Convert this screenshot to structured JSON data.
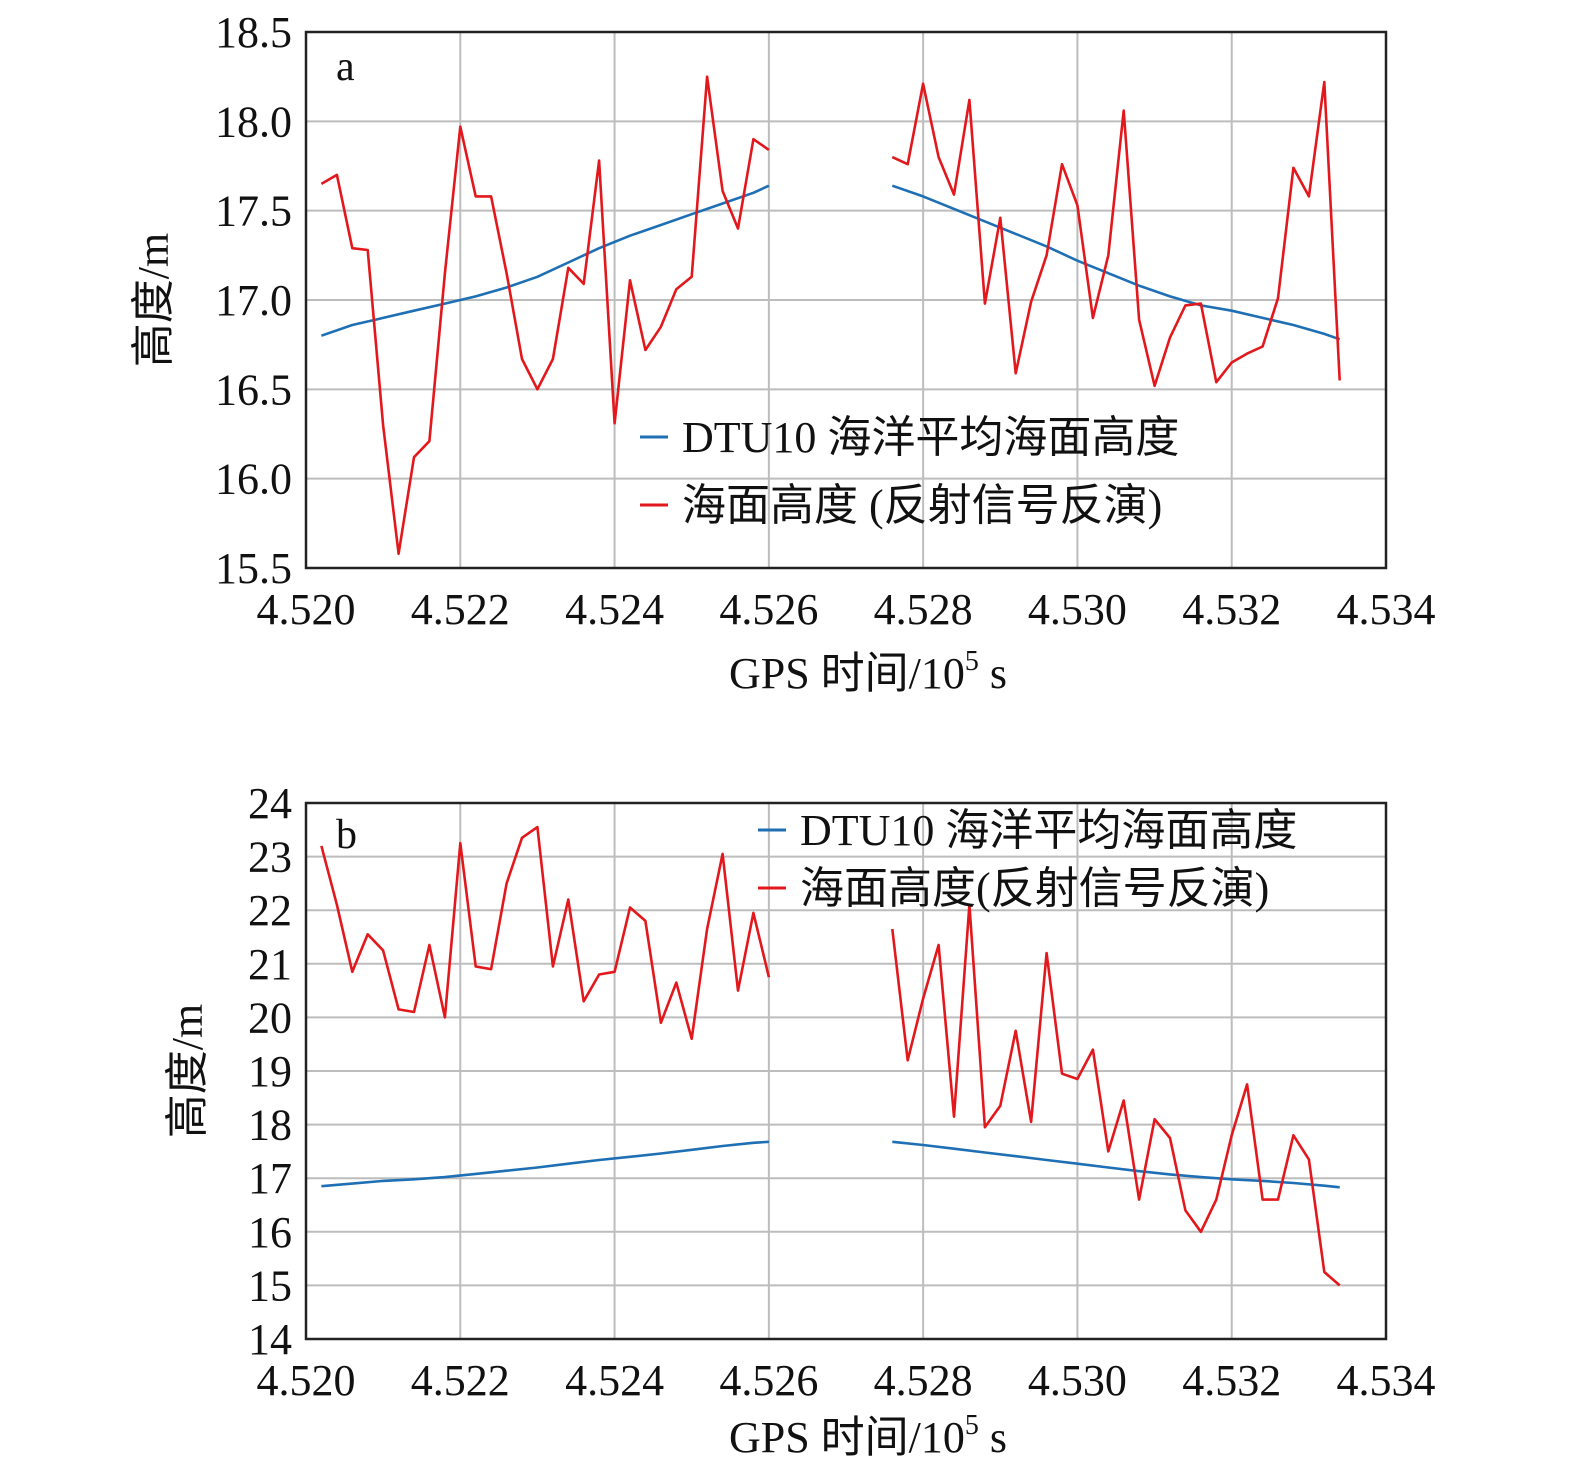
{
  "colors": {
    "dtu": "#1f6fb4",
    "ssh": "#e3181c",
    "grid": "#bdbdbd",
    "frame": "#222222"
  },
  "chart_data": [
    {
      "type": "line",
      "panel_label": "a",
      "xlabel_main": "GPS 时间/10",
      "xlabel_sup": "5",
      "xlabel_unit": " s",
      "ylabel": "高度/m",
      "xlim": [
        4.52,
        4.534
      ],
      "ylim": [
        15.5,
        18.5
      ],
      "xticks": [
        "4.520",
        "4.522",
        "4.524",
        "4.526",
        "4.528",
        "4.530",
        "4.532",
        "4.534"
      ],
      "yticks": [
        "15.5",
        "16.0",
        "16.5",
        "17.0",
        "17.5",
        "18.0",
        "18.5"
      ],
      "grid": true,
      "legend_position": "lower-right",
      "series": [
        {
          "name": "DTU10 海洋平均海面高度",
          "color_key": "dtu",
          "segments": [
            {
              "x": [
                4.5202,
                4.5206,
                4.521,
                4.5214,
                4.5218,
                4.5222,
                4.5226,
                4.523,
                4.5234,
                4.5238,
                4.5242,
                4.5246,
                4.525,
                4.5254,
                4.5258,
                4.526
              ],
              "y": [
                16.8,
                16.86,
                16.9,
                16.94,
                16.98,
                17.02,
                17.07,
                17.13,
                17.21,
                17.29,
                17.36,
                17.42,
                17.48,
                17.54,
                17.6,
                17.64
              ]
            },
            {
              "x": [
                4.5276,
                4.528,
                4.5284,
                4.5288,
                4.5292,
                4.5296,
                4.53,
                4.5304,
                4.5308,
                4.5312,
                4.5316,
                4.532,
                4.5324,
                4.5328,
                4.5332,
                4.5334
              ],
              "y": [
                17.64,
                17.58,
                17.51,
                17.44,
                17.37,
                17.3,
                17.22,
                17.15,
                17.08,
                17.02,
                16.97,
                16.94,
                16.9,
                16.86,
                16.81,
                16.78
              ]
            }
          ]
        },
        {
          "name": "海面高度 (反射信号反演)",
          "color_key": "ssh",
          "segments": [
            {
              "x": [
                4.5202,
                4.5204,
                4.5206,
                4.5208,
                4.521,
                4.5212,
                4.5214,
                4.5216,
                4.5218,
                4.522,
                4.5222,
                4.5224,
                4.5226,
                4.5228,
                4.523,
                4.5232,
                4.5234,
                4.5236,
                4.5238,
                4.524,
                4.5242,
                4.5244,
                4.5246,
                4.5248,
                4.525,
                4.5252,
                4.5254,
                4.5256,
                4.5258,
                4.526
              ],
              "y": [
                17.65,
                17.7,
                17.29,
                17.28,
                16.3,
                15.58,
                16.12,
                16.21,
                17.15,
                17.97,
                17.58,
                17.58,
                17.15,
                16.67,
                16.5,
                16.67,
                17.18,
                17.09,
                17.78,
                16.31,
                17.11,
                16.72,
                16.85,
                17.06,
                17.13,
                18.25,
                17.61,
                17.4,
                17.9,
                17.84
              ]
            },
            {
              "x": [
                4.5276,
                4.5278,
                4.528,
                4.5282,
                4.5284,
                4.5286,
                4.5288,
                4.529,
                4.5292,
                4.5294,
                4.5296,
                4.5298,
                4.53,
                4.5302,
                4.5304,
                4.5306,
                4.5308,
                4.531,
                4.5312,
                4.5314,
                4.5316,
                4.5318,
                4.532,
                4.5322,
                4.5324,
                4.5326,
                4.5328,
                4.533,
                4.5332,
                4.5334
              ],
              "y": [
                17.8,
                17.76,
                18.21,
                17.8,
                17.59,
                18.12,
                16.98,
                17.46,
                16.59,
                16.99,
                17.25,
                17.76,
                17.53,
                16.9,
                17.25,
                18.06,
                16.89,
                16.52,
                16.79,
                16.97,
                16.98,
                16.54,
                16.65,
                16.7,
                16.74,
                17.01,
                17.74,
                17.58,
                18.22,
                16.55
              ]
            }
          ]
        }
      ]
    },
    {
      "type": "line",
      "panel_label": "b",
      "xlabel_main": "GPS 时间/10",
      "xlabel_sup": "5",
      "xlabel_unit": " s",
      "ylabel": "高度/m",
      "xlim": [
        4.52,
        4.534
      ],
      "ylim": [
        14,
        24
      ],
      "xticks": [
        "4.520",
        "4.522",
        "4.524",
        "4.526",
        "4.528",
        "4.530",
        "4.532",
        "4.534"
      ],
      "yticks": [
        "14",
        "15",
        "16",
        "17",
        "18",
        "19",
        "20",
        "21",
        "22",
        "23",
        "24"
      ],
      "grid": true,
      "legend_position": "top-right",
      "series": [
        {
          "name": "DTU10 海洋平均海面高度",
          "color_key": "dtu",
          "segments": [
            {
              "x": [
                4.5202,
                4.5206,
                4.521,
                4.5214,
                4.5218,
                4.5222,
                4.5226,
                4.523,
                4.5234,
                4.5238,
                4.5242,
                4.5246,
                4.525,
                4.5254,
                4.5258,
                4.526
              ],
              "y": [
                16.85,
                16.9,
                16.95,
                16.98,
                17.02,
                17.08,
                17.14,
                17.2,
                17.27,
                17.34,
                17.4,
                17.46,
                17.53,
                17.6,
                17.66,
                17.68
              ]
            },
            {
              "x": [
                4.5276,
                4.528,
                4.5284,
                4.5288,
                4.5292,
                4.5296,
                4.53,
                4.5304,
                4.5308,
                4.5312,
                4.5316,
                4.532,
                4.5324,
                4.5328,
                4.5332,
                4.5334
              ],
              "y": [
                17.68,
                17.62,
                17.55,
                17.48,
                17.41,
                17.34,
                17.27,
                17.2,
                17.13,
                17.07,
                17.02,
                16.98,
                16.95,
                16.91,
                16.86,
                16.83
              ]
            }
          ]
        },
        {
          "name": "海面高度(反射信号反演)",
          "color_key": "ssh",
          "segments": [
            {
              "x": [
                4.5202,
                4.5204,
                4.5206,
                4.5208,
                4.521,
                4.5212,
                4.5214,
                4.5216,
                4.5218,
                4.522,
                4.5222,
                4.5224,
                4.5226,
                4.5228,
                4.523,
                4.5232,
                4.5234,
                4.5236,
                4.5238,
                4.524,
                4.5242,
                4.5244,
                4.5246,
                4.5248,
                4.525,
                4.5252,
                4.5254,
                4.5256,
                4.5258,
                4.526
              ],
              "y": [
                23.2,
                22.1,
                20.85,
                21.55,
                21.25,
                20.15,
                20.1,
                21.35,
                20.0,
                23.25,
                20.95,
                20.9,
                22.5,
                23.35,
                23.55,
                20.95,
                22.2,
                20.3,
                20.8,
                20.85,
                22.05,
                21.8,
                19.9,
                20.65,
                19.6,
                21.65,
                23.05,
                20.5,
                21.95,
                20.75
              ]
            },
            {
              "x": [
                4.5276,
                4.5278,
                4.528,
                4.5282,
                4.5284,
                4.5286,
                4.5288,
                4.529,
                4.5292,
                4.5294,
                4.5296,
                4.5298,
                4.53,
                4.5302,
                4.5304,
                4.5306,
                4.5308,
                4.531,
                4.5312,
                4.5314,
                4.5316,
                4.5318,
                4.532,
                4.5322,
                4.5324,
                4.5326,
                4.5328,
                4.533,
                4.5332,
                4.5334
              ],
              "y": [
                21.65,
                19.2,
                20.35,
                21.35,
                18.15,
                22.1,
                17.95,
                18.35,
                19.75,
                18.05,
                21.2,
                18.95,
                18.85,
                19.4,
                17.5,
                18.45,
                16.6,
                18.1,
                17.75,
                16.4,
                16.0,
                16.6,
                17.8,
                18.75,
                16.6,
                16.6,
                17.8,
                17.35,
                15.25,
                15.0
              ]
            }
          ]
        }
      ]
    }
  ]
}
